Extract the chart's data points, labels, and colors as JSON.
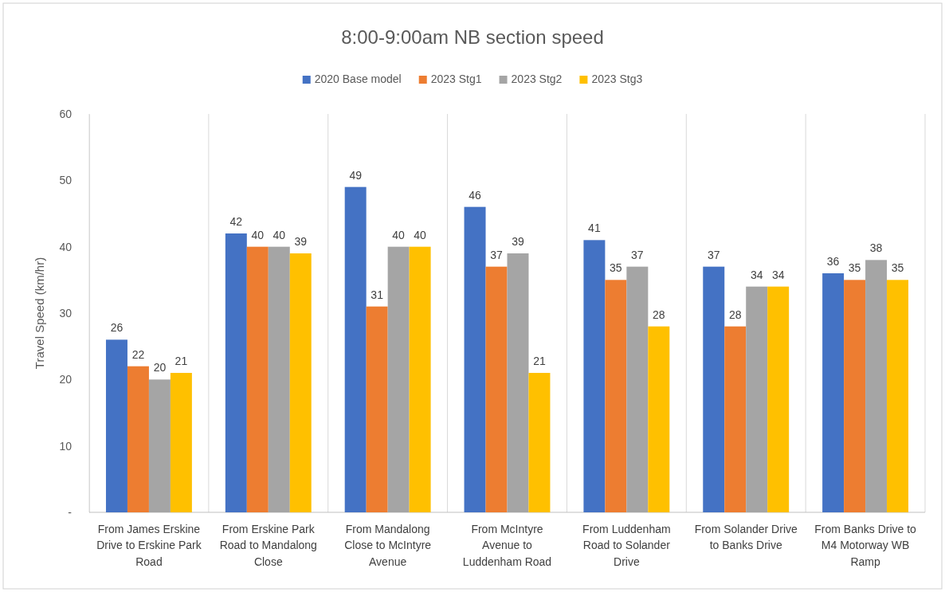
{
  "chart_data": {
    "type": "bar",
    "title": "8:00-9:00am NB section speed",
    "ylabel": "Travel Speed  (km/hr)",
    "categories": [
      "From James Erskine Drive to Erskine Park Road",
      "From Erskine Park Road to Mandalong Close",
      "From Mandalong Close to McIntyre Avenue",
      "From McIntyre Avenue to Luddenham Road",
      "From Luddenham Road to Solander Drive",
      "From Solander Drive to Banks Drive",
      "From Banks Drive to M4 Motorway WB Ramp"
    ],
    "series": [
      {
        "name": "2020 Base model",
        "color": "#4472c4",
        "values": [
          26,
          42,
          49,
          46,
          41,
          37,
          36
        ]
      },
      {
        "name": "2023 Stg1",
        "color": "#ed7d31",
        "values": [
          22,
          40,
          31,
          37,
          35,
          28,
          35
        ]
      },
      {
        "name": "2023 Stg2",
        "color": "#a5a5a5",
        "values": [
          20,
          40,
          40,
          39,
          37,
          34,
          38
        ]
      },
      {
        "name": "2023 Stg3",
        "color": "#ffc000",
        "values": [
          21,
          39,
          40,
          21,
          28,
          34,
          35
        ]
      }
    ],
    "ylim": [
      0,
      60
    ],
    "yticks": [
      {
        "value": 0,
        "label": "-"
      },
      10,
      20,
      30,
      40,
      50,
      60
    ],
    "grid": "x",
    "legend": "top",
    "data_labels": true
  }
}
